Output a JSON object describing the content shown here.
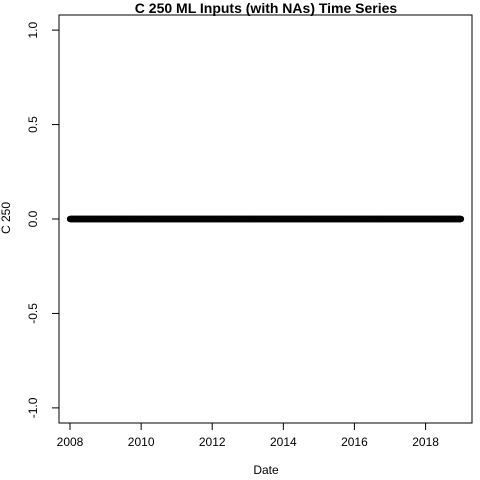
{
  "chart_data": {
    "type": "scatter",
    "title": "C 250 ML Inputs (with NAs) Time Series",
    "xlabel": "Date",
    "ylabel": "C 250",
    "x_ticks": [
      "2008",
      "2010",
      "2012",
      "2014",
      "2016",
      "2018"
    ],
    "y_ticks": [
      "-1.0",
      "-0.5",
      "0.0",
      "0.5",
      "1.0"
    ],
    "xlim": [
      "2007-09-10",
      "2019-04-23"
    ],
    "ylim": [
      -1.08,
      1.08
    ],
    "grid": false,
    "series": [
      {
        "x_start": "2008-01-01",
        "x_end": "2018-12-31",
        "y": 0,
        "marker": "open-circle",
        "color": "#000000"
      }
    ]
  }
}
